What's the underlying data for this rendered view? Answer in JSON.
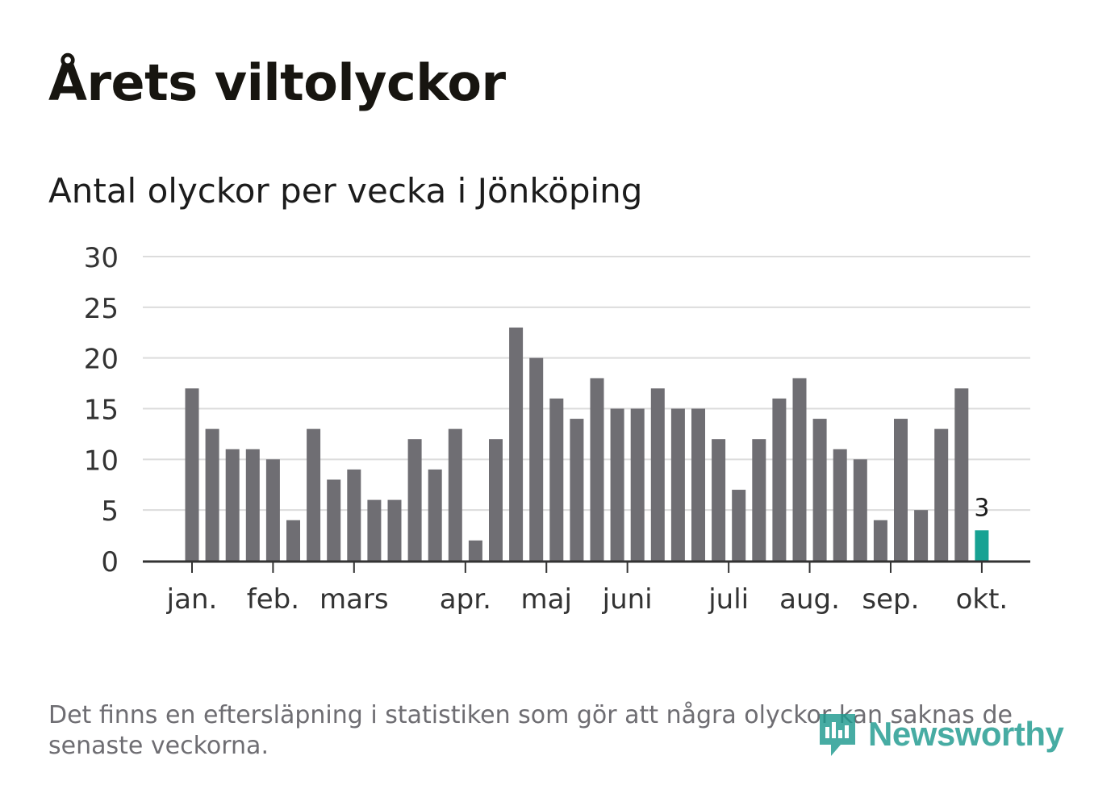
{
  "header": {
    "title": "Årets viltolyckor",
    "subtitle": "Antal olyckor per vecka i Jönköping"
  },
  "footer": {
    "note": "Det finns en eftersläpning i statistiken som gör att några olyckor kan saknas de senaste veckorna.",
    "brand": "Newsworthy",
    "brand_icon": "newsworthy-logo-icon"
  },
  "colors": {
    "bar": "#6f6e73",
    "highlight": "#17a293",
    "grid": "#dcdcdc",
    "axis": "#333333"
  },
  "chart_data": {
    "type": "bar",
    "title": "Antal olyckor per vecka i Jönköping",
    "xlabel": "",
    "ylabel": "",
    "ylim": [
      0,
      30
    ],
    "yticks": [
      0,
      5,
      10,
      15,
      20,
      25,
      30
    ],
    "grid": true,
    "weeks": [
      1,
      2,
      3,
      4,
      5,
      6,
      7,
      8,
      9,
      10,
      11,
      12,
      13,
      14,
      15,
      16,
      17,
      18,
      19,
      20,
      21,
      22,
      23,
      24,
      25,
      26,
      27,
      28,
      29,
      30,
      31,
      32,
      33,
      34,
      35,
      36,
      37,
      38,
      39,
      40
    ],
    "values": [
      17,
      13,
      11,
      11,
      10,
      4,
      13,
      8,
      9,
      6,
      6,
      12,
      9,
      13,
      2,
      12,
      23,
      20,
      16,
      14,
      18,
      15,
      15,
      17,
      15,
      15,
      12,
      7,
      12,
      16,
      18,
      14,
      11,
      10,
      4,
      14,
      5,
      13,
      17,
      3
    ],
    "highlight_index": 39,
    "highlight_label": "3",
    "month_ticks": [
      {
        "label": "jan.",
        "week": 1
      },
      {
        "label": "feb.",
        "week": 5
      },
      {
        "label": "mars",
        "week": 9
      },
      {
        "label": "apr.",
        "week": 14.5
      },
      {
        "label": "maj",
        "week": 18.5
      },
      {
        "label": "juni",
        "week": 22.5
      },
      {
        "label": "juli",
        "week": 27.5
      },
      {
        "label": "aug.",
        "week": 31.5
      },
      {
        "label": "sep.",
        "week": 35.5
      },
      {
        "label": "okt.",
        "week": 40
      }
    ]
  }
}
